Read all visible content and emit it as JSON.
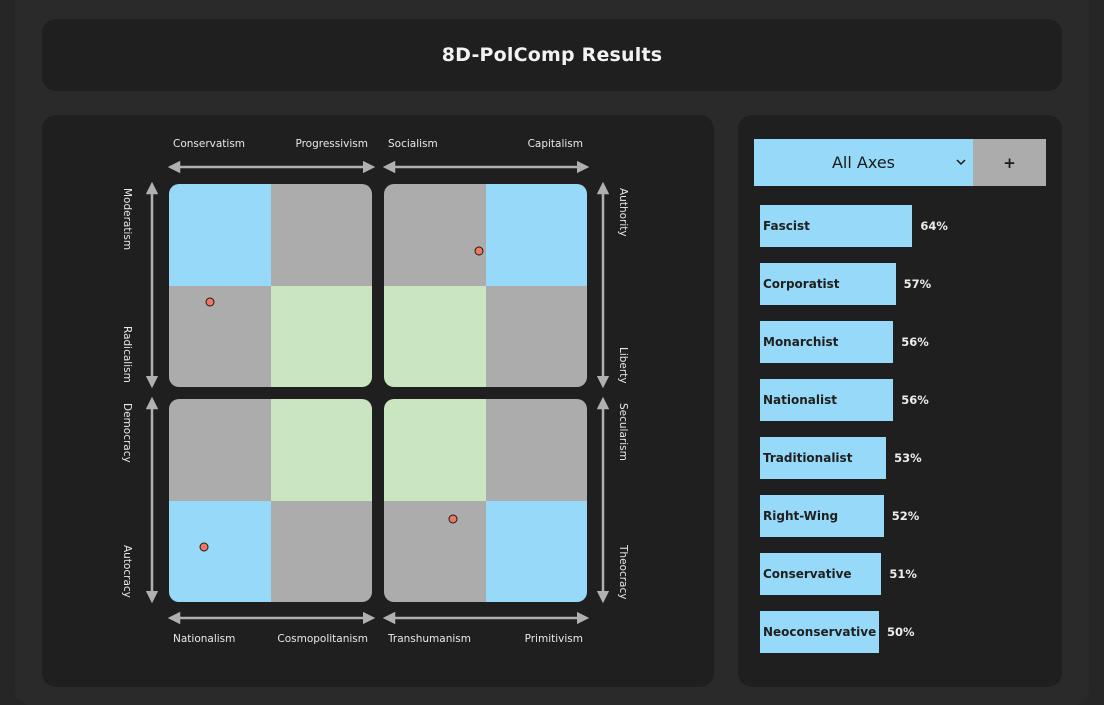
{
  "header": {
    "title": "8D-PolComp Results"
  },
  "axis_labels": {
    "top_left_left": "Conservatism",
    "top_left_right": "Progressivism",
    "top_right_left": "Socialism",
    "top_right_right": "Capitalism",
    "bottom_left_left": "Nationalism",
    "bottom_left_right": "Cosmopolitanism",
    "bottom_right_left": "Transhumanism",
    "bottom_right_right": "Primitivism",
    "left_top_upper": "Moderatism",
    "left_top_lower": "Radicalism",
    "left_bottom_upper": "Democracy",
    "left_bottom_lower": "Autocracy",
    "right_top_upper": "Authority",
    "right_top_lower": "Liberty",
    "right_bottom_upper": "Secularism",
    "right_bottom_lower": "Theocracy"
  },
  "compass": {
    "colors": {
      "blue": "#97d9f8",
      "grey": "#acacac",
      "green": "#c9e6c0",
      "dot": "#f07860"
    },
    "quadrants": [
      {
        "name": "top-left",
        "cells": [
          "blue",
          "grey",
          "grey",
          "green"
        ],
        "marker": {
          "x_frac": 0.2,
          "y_frac": 0.58
        }
      },
      {
        "name": "top-right",
        "cells": [
          "grey",
          "blue",
          "green",
          "grey"
        ],
        "marker": {
          "x_frac": 0.47,
          "y_frac": 0.33
        }
      },
      {
        "name": "bottom-left",
        "cells": [
          "grey",
          "green",
          "blue",
          "grey"
        ],
        "marker": {
          "x_frac": 0.17,
          "y_frac": 0.73
        }
      },
      {
        "name": "bottom-right",
        "cells": [
          "green",
          "grey",
          "grey",
          "blue"
        ],
        "marker": {
          "x_frac": 0.34,
          "y_frac": 0.59
        }
      }
    ]
  },
  "selector": {
    "value": "All Axes",
    "add_label": "+"
  },
  "results": [
    {
      "label": "Fascist",
      "percent": 64,
      "percent_label": "64%"
    },
    {
      "label": "Corporatist",
      "percent": 57,
      "percent_label": "57%"
    },
    {
      "label": "Monarchist",
      "percent": 56,
      "percent_label": "56%"
    },
    {
      "label": "Nationalist",
      "percent": 56,
      "percent_label": "56%"
    },
    {
      "label": "Traditionalist",
      "percent": 53,
      "percent_label": "53%"
    },
    {
      "label": "Right-Wing",
      "percent": 52,
      "percent_label": "52%"
    },
    {
      "label": "Conservative",
      "percent": 51,
      "percent_label": "51%"
    },
    {
      "label": "Neoconservative",
      "percent": 50,
      "percent_label": "50%"
    }
  ]
}
